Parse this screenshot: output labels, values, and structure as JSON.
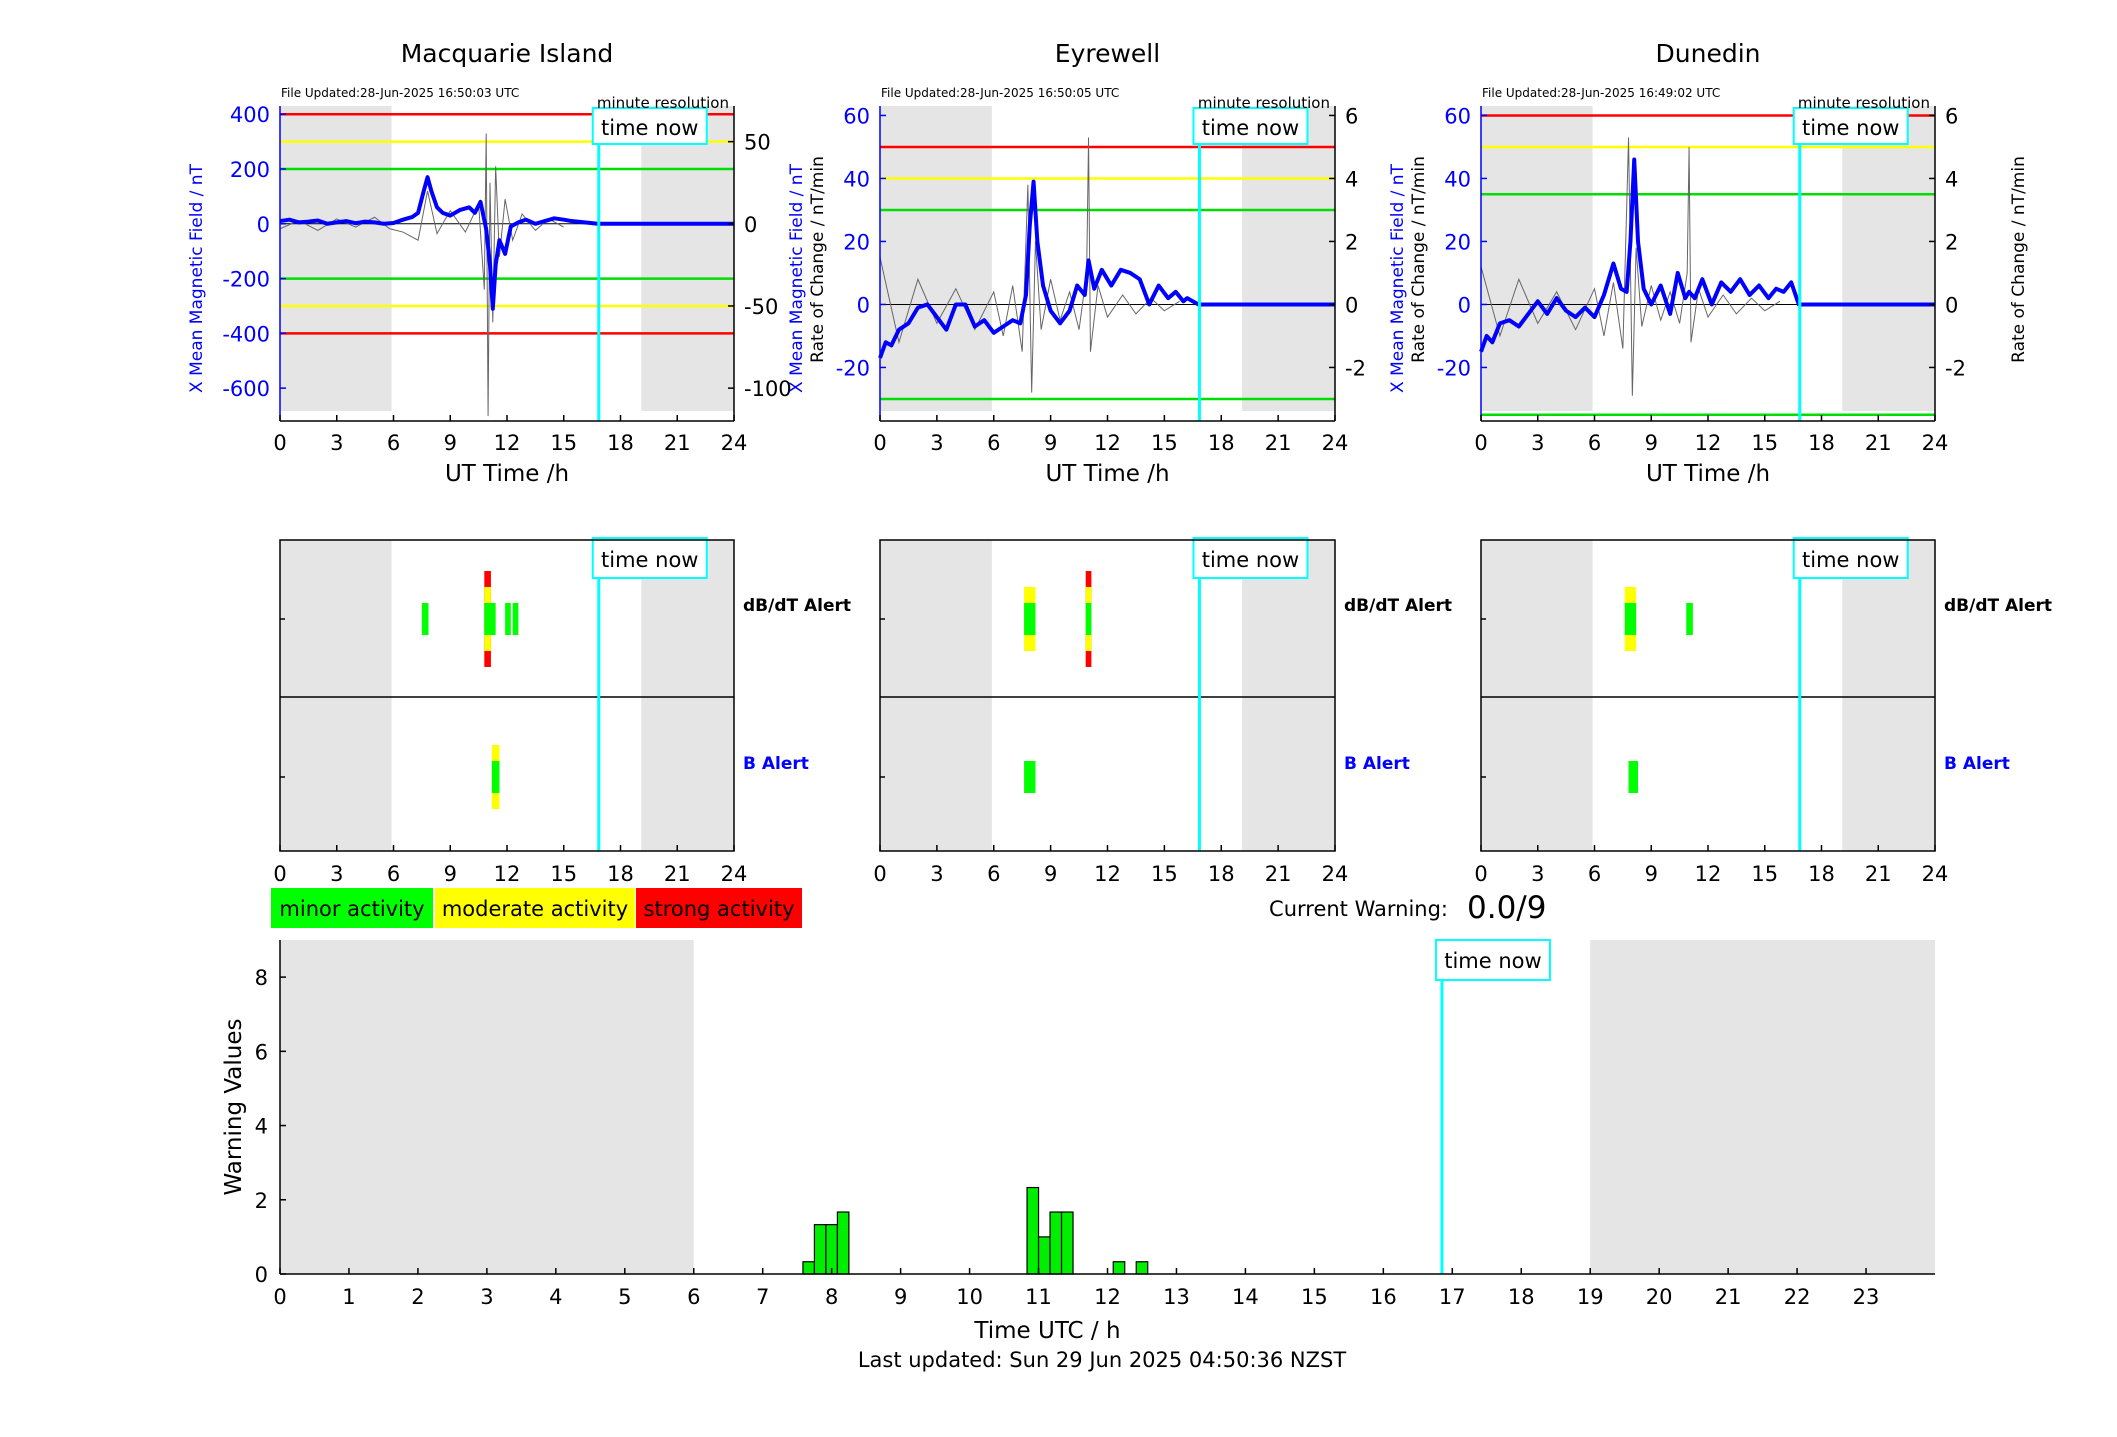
{
  "chart_data": [
    {
      "type": "line",
      "title": "Macquarie Island",
      "file_updated": "File Updated:28-Jun-2025 16:50:03 UTC",
      "resolution_label": "minute resolution",
      "time_now_label": "time now",
      "time_now_h": 16.85,
      "xlabel": "UT Time /h",
      "ylabel_left": "X Mean Magnetic Field / nT",
      "ylabel_right": "Rate of Change / nT/min",
      "xlim": [
        0,
        24
      ],
      "xticks": [
        0,
        3,
        6,
        9,
        12,
        15,
        18,
        21,
        24
      ],
      "ylim_left": [
        -720,
        430
      ],
      "yticks_left": [
        -600,
        -400,
        -200,
        0,
        200,
        400
      ],
      "ylim_right": [
        -120,
        71.7
      ],
      "yticks_right": [
        -100,
        -50,
        0,
        50
      ],
      "night_shading_h": [
        [
          0,
          5.9
        ],
        [
          19.1,
          24
        ]
      ],
      "thresholds": [
        {
          "value": 400,
          "color": "#ff0000"
        },
        {
          "value": 300,
          "color": "#ffff00"
        },
        {
          "value": 200,
          "color": "#00dd00"
        },
        {
          "value": -200,
          "color": "#00dd00"
        },
        {
          "value": -300,
          "color": "#ffff00"
        },
        {
          "value": -400,
          "color": "#ff0000"
        }
      ],
      "series": [
        {
          "role": "field",
          "color": "#0000ff",
          "x": [
            0,
            0.5,
            1,
            1.5,
            2,
            2.5,
            3,
            3.5,
            4,
            4.5,
            5,
            5.5,
            6,
            6.5,
            7,
            7.3,
            7.6,
            7.8,
            8,
            8.3,
            8.6,
            9,
            9.5,
            10,
            10.3,
            10.6,
            10.9,
            11.1,
            11.25,
            11.4,
            11.6,
            11.9,
            12.2,
            12.6,
            13,
            13.5,
            14,
            14.5,
            15,
            15.4,
            16.8,
            24
          ],
          "y": [
            10,
            15,
            5,
            8,
            12,
            0,
            5,
            10,
            2,
            8,
            5,
            0,
            3,
            15,
            25,
            40,
            120,
            170,
            120,
            60,
            40,
            30,
            50,
            60,
            40,
            80,
            -20,
            -150,
            -310,
            -150,
            -60,
            -110,
            -10,
            5,
            15,
            0,
            10,
            20,
            15,
            10,
            0,
            0
          ]
        },
        {
          "role": "rate",
          "color": "#666666",
          "x": [
            0,
            1,
            2,
            3,
            4,
            5,
            5.8,
            6.5,
            7.3,
            7.8,
            8.3,
            9,
            9.8,
            10.5,
            10.8,
            10.9,
            11,
            11.1,
            11.25,
            11.4,
            11.6,
            11.9,
            12.3,
            12.8,
            13.5,
            14.2,
            15
          ],
          "y": [
            -3,
            2,
            -4,
            3,
            -2,
            4,
            -3,
            -5,
            -10,
            20,
            -6,
            8,
            -5,
            12,
            -40,
            55,
            -117,
            25,
            -60,
            35,
            -20,
            15,
            -10,
            6,
            -4,
            3,
            -2
          ]
        }
      ]
    },
    {
      "type": "line",
      "title": "Eyrewell",
      "file_updated": "File Updated:28-Jun-2025 16:50:05 UTC",
      "resolution_label": "minute resolution",
      "time_now_label": "time now",
      "time_now_h": 16.85,
      "xlabel": "UT Time /h",
      "ylabel_left": "X Mean Magnetic Field / nT",
      "ylabel_right": "Rate of Change / nT/min",
      "xlim": [
        0,
        24
      ],
      "xticks": [
        0,
        3,
        6,
        9,
        12,
        15,
        18,
        21,
        24
      ],
      "ylim_left": [
        -37,
        63
      ],
      "yticks_left": [
        -20,
        0,
        20,
        40,
        60
      ],
      "ylim_right": [
        -3.7,
        6.3
      ],
      "yticks_right": [
        -2,
        0,
        2,
        4,
        6
      ],
      "night_shading_h": [
        [
          0,
          5.9
        ],
        [
          19.1,
          24
        ]
      ],
      "thresholds": [
        {
          "value": 50,
          "color": "#ff0000"
        },
        {
          "value": 40,
          "color": "#ffff00"
        },
        {
          "value": 30,
          "color": "#00dd00"
        },
        {
          "value": -30,
          "color": "#00dd00"
        }
      ],
      "series": [
        {
          "role": "field",
          "color": "#0000ff",
          "x": [
            0,
            0.3,
            0.6,
            1,
            1.5,
            2,
            2.5,
            3,
            3.5,
            4,
            4.5,
            5,
            5.5,
            6,
            6.5,
            7,
            7.4,
            7.7,
            7.9,
            8.1,
            8.3,
            8.6,
            9,
            9.5,
            10,
            10.4,
            10.8,
            11,
            11.3,
            11.7,
            12.2,
            12.7,
            13.2,
            13.7,
            14.2,
            14.7,
            15.2,
            15.6,
            16,
            16.2,
            16.8,
            24
          ],
          "y": [
            -17,
            -12,
            -13,
            -8,
            -6,
            -1,
            0,
            -4,
            -8,
            0,
            0,
            -7,
            -5,
            -9,
            -7,
            -5,
            -6,
            3,
            25,
            39,
            20,
            6,
            -2,
            -6,
            -2,
            6,
            3,
            14,
            5,
            11,
            6,
            11,
            10,
            8,
            0,
            6,
            2,
            4,
            1,
            2,
            0,
            0
          ]
        },
        {
          "role": "rate",
          "color": "#666666",
          "x": [
            0,
            1,
            2,
            3,
            4,
            5,
            6,
            6.5,
            7,
            7.5,
            7.8,
            8,
            8.2,
            8.5,
            9,
            9.5,
            10,
            10.5,
            10.9,
            11,
            11.1,
            11.5,
            12,
            12.8,
            13.5,
            14.3,
            15,
            15.8
          ],
          "y": [
            1.5,
            -1.2,
            0.8,
            -0.6,
            0.5,
            -0.8,
            0.4,
            -1,
            0.6,
            -1.5,
            3.8,
            -2.8,
            2,
            -0.8,
            0.8,
            -0.5,
            0.4,
            -0.8,
            1,
            5.3,
            -1.5,
            0.6,
            -0.4,
            0.3,
            -0.3,
            0.2,
            -0.2,
            0.1
          ]
        }
      ]
    },
    {
      "type": "line",
      "title": "Dunedin",
      "file_updated": "File Updated:28-Jun-2025 16:49:02 UTC",
      "resolution_label": "minute resolution",
      "time_now_label": "time now",
      "time_now_h": 16.85,
      "xlabel": "UT Time /h",
      "ylabel_left": "X Mean Magnetic Field / nT",
      "ylabel_right": "Rate of Change / nT/min",
      "xlim": [
        0,
        24
      ],
      "xticks": [
        0,
        3,
        6,
        9,
        12,
        15,
        18,
        21,
        24
      ],
      "ylim_left": [
        -37,
        63
      ],
      "yticks_left": [
        -20,
        0,
        20,
        40,
        60
      ],
      "ylim_right": [
        -3.7,
        6.3
      ],
      "yticks_right": [
        -2,
        0,
        2,
        4,
        6
      ],
      "night_shading_h": [
        [
          0,
          5.9
        ],
        [
          19.1,
          24
        ]
      ],
      "thresholds": [
        {
          "value": 60,
          "color": "#ff0000"
        },
        {
          "value": 50,
          "color": "#ffff00"
        },
        {
          "value": 35,
          "color": "#00dd00"
        },
        {
          "value": -35,
          "color": "#00dd00"
        }
      ],
      "series": [
        {
          "role": "field",
          "color": "#0000ff",
          "x": [
            0,
            0.3,
            0.6,
            1,
            1.5,
            2,
            2.5,
            3,
            3.5,
            4,
            4.5,
            5,
            5.5,
            6,
            6.5,
            7,
            7.4,
            7.7,
            7.9,
            8.1,
            8.3,
            8.6,
            9,
            9.5,
            10,
            10.4,
            10.8,
            11,
            11.3,
            11.7,
            12.2,
            12.7,
            13.2,
            13.7,
            14.2,
            14.7,
            15.2,
            15.6,
            16,
            16.4,
            16.8,
            24
          ],
          "y": [
            -15,
            -10,
            -12,
            -6,
            -5,
            -7,
            -3,
            1,
            -3,
            2,
            -2,
            -4,
            -1,
            -4,
            3,
            13,
            5,
            4,
            20,
            46,
            20,
            5,
            0,
            6,
            -3,
            10,
            2,
            4,
            2,
            8,
            0,
            7,
            4,
            8,
            3,
            6,
            2,
            5,
            4,
            7,
            0,
            0
          ]
        },
        {
          "role": "rate",
          "color": "#666666",
          "x": [
            0,
            1,
            2,
            3,
            4,
            5,
            6,
            6.5,
            7,
            7.5,
            7.8,
            8,
            8.2,
            8.5,
            9,
            9.5,
            10,
            10.5,
            10.9,
            11,
            11.1,
            11.5,
            12,
            12.8,
            13.5,
            14.3,
            15,
            15.8
          ],
          "y": [
            1.2,
            -1,
            0.8,
            -0.6,
            0.4,
            -0.8,
            0.5,
            -1,
            0.7,
            -1.4,
            5.3,
            -2.9,
            1.8,
            -0.7,
            0.6,
            -0.5,
            0.4,
            -0.6,
            1,
            5,
            -1.2,
            0.5,
            -0.4,
            0.3,
            -0.3,
            0.2,
            -0.2,
            0.1
          ]
        }
      ]
    },
    {
      "type": "heatmap",
      "panel": "Macquarie Island alerts",
      "time_now_label": "time now",
      "time_now_h": 16.85,
      "xlim": [
        0,
        24
      ],
      "xticks": [
        0,
        3,
        6,
        9,
        12,
        15,
        18,
        21,
        24
      ],
      "night_shading_h": [
        [
          0,
          5.9
        ],
        [
          19.1,
          24
        ]
      ],
      "rows": [
        {
          "label": "dB/dT Alert",
          "label_color": "#000000",
          "blocks": [
            {
              "x0": 7.5,
              "x1": 7.85,
              "level": "minor"
            },
            {
              "x0": 10.8,
              "x1": 11.15,
              "level": "strong"
            },
            {
              "x0": 10.8,
              "x1": 11.15,
              "level": "moderate"
            },
            {
              "x0": 10.8,
              "x1": 11.15,
              "level": "minor"
            },
            {
              "x0": 11.15,
              "x1": 11.4,
              "level": "minor"
            },
            {
              "x0": 11.9,
              "x1": 12.2,
              "level": "minor"
            },
            {
              "x0": 12.3,
              "x1": 12.6,
              "level": "minor"
            }
          ]
        },
        {
          "label": "B Alert",
          "label_color": "#0000ff",
          "blocks": [
            {
              "x0": 11.2,
              "x1": 11.6,
              "level": "moderate"
            },
            {
              "x0": 11.2,
              "x1": 11.6,
              "level": "minor"
            }
          ]
        }
      ]
    },
    {
      "type": "heatmap",
      "panel": "Eyrewell alerts",
      "time_now_label": "time now",
      "time_now_h": 16.85,
      "xlim": [
        0,
        24
      ],
      "xticks": [
        0,
        3,
        6,
        9,
        12,
        15,
        18,
        21,
        24
      ],
      "night_shading_h": [
        [
          0,
          5.9
        ],
        [
          19.1,
          24
        ]
      ],
      "rows": [
        {
          "label": "dB/dT Alert",
          "label_color": "#000000",
          "blocks": [
            {
              "x0": 7.6,
              "x1": 8.2,
              "level": "moderate"
            },
            {
              "x0": 7.6,
              "x1": 8.2,
              "level": "minor"
            },
            {
              "x0": 10.85,
              "x1": 11.15,
              "level": "strong"
            },
            {
              "x0": 10.85,
              "x1": 11.15,
              "level": "moderate"
            },
            {
              "x0": 10.85,
              "x1": 11.15,
              "level": "minor"
            }
          ]
        },
        {
          "label": "B Alert",
          "label_color": "#0000ff",
          "blocks": [
            {
              "x0": 7.6,
              "x1": 8.2,
              "level": "minor"
            }
          ]
        }
      ]
    },
    {
      "type": "heatmap",
      "panel": "Dunedin alerts",
      "time_now_label": "time now",
      "time_now_h": 16.85,
      "xlim": [
        0,
        24
      ],
      "xticks": [
        0,
        3,
        6,
        9,
        12,
        15,
        18,
        21,
        24
      ],
      "night_shading_h": [
        [
          0,
          5.9
        ],
        [
          19.1,
          24
        ]
      ],
      "rows": [
        {
          "label": "dB/dT Alert",
          "label_color": "#000000",
          "blocks": [
            {
              "x0": 7.6,
              "x1": 8.2,
              "level": "moderate"
            },
            {
              "x0": 7.6,
              "x1": 8.2,
              "level": "minor"
            },
            {
              "x0": 10.85,
              "x1": 11.2,
              "level": "minor"
            }
          ]
        },
        {
          "label": "B Alert",
          "label_color": "#0000ff",
          "blocks": [
            {
              "x0": 7.8,
              "x1": 8.3,
              "level": "minor"
            }
          ]
        }
      ]
    },
    {
      "type": "bar",
      "xlabel": "Time UTC / h",
      "ylabel": "Warning Values",
      "time_now_label": "time now",
      "time_now_h": 16.85,
      "xlim": [
        0,
        24
      ],
      "xticks": [
        0,
        1,
        2,
        3,
        4,
        5,
        6,
        7,
        8,
        9,
        10,
        11,
        12,
        13,
        14,
        15,
        16,
        17,
        18,
        19,
        20,
        21,
        22,
        23
      ],
      "ylim": [
        0,
        9
      ],
      "yticks": [
        0,
        2,
        4,
        6,
        8
      ],
      "night_shading_h": [
        [
          0,
          6
        ],
        [
          19,
          24
        ]
      ],
      "bar_width_h": 0.1667,
      "bar_color": "#00ee00",
      "x": [
        7.6667,
        7.8333,
        8.0,
        8.1667,
        10.9167,
        11.0833,
        11.25,
        11.4167,
        12.1667,
        12.5
      ],
      "values": [
        0.33,
        1.33,
        1.33,
        1.67,
        2.33,
        1.0,
        1.67,
        1.67,
        0.33,
        0.33
      ]
    }
  ],
  "legend": {
    "items": [
      {
        "label": "minor activity",
        "color": "#00ff00"
      },
      {
        "label": "moderate activity",
        "color": "#ffff00"
      },
      {
        "label": "strong activity",
        "color": "#ff0000"
      }
    ]
  },
  "current_warning": {
    "label": "Current Warning:",
    "value": "0.0/9"
  },
  "footer": {
    "last_updated": "Last updated: Sun 29 Jun 2025 04:50:36 NZST"
  },
  "colors": {
    "minor": "#00ff00",
    "moderate": "#ffff00",
    "strong": "#ff0000",
    "time_now": "#00ffff",
    "field": "#0000ff",
    "night": "#e5e5e5"
  }
}
